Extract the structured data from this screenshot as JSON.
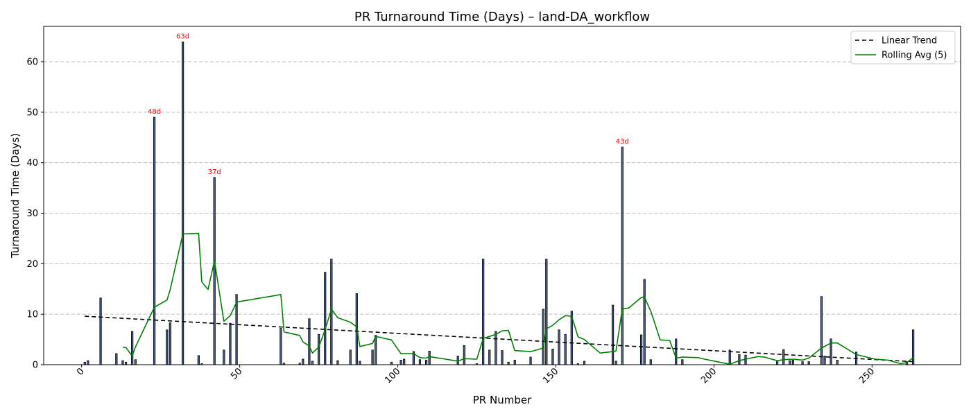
{
  "chart_data": {
    "type": "bar",
    "title": "PR Turnaround Time (Days) – land-DA_workflow",
    "xlabel": "PR Number",
    "ylabel": "Turnaround Time (Days)",
    "xlim": [
      -12,
      278
    ],
    "ylim": [
      0,
      67
    ],
    "xticks": [
      0,
      50,
      100,
      150,
      200,
      250
    ],
    "yticks": [
      0,
      10,
      20,
      30,
      40,
      50,
      60
    ],
    "grid": "y-dashed",
    "legend_position": "top-right",
    "colors": {
      "bar_fill": "#4c6391",
      "bar_edge": "#000000",
      "trend": "#000000",
      "rolling": "#008000",
      "annotation": "#ff0000",
      "grid": "#bbbbbb"
    },
    "bars": {
      "x": [
        1,
        2,
        6,
        11,
        13,
        14,
        16,
        17,
        23,
        27,
        28,
        32,
        37,
        38,
        42,
        45,
        47,
        49,
        63,
        64,
        69,
        70,
        72,
        73,
        75,
        77,
        79,
        81,
        85,
        87,
        88,
        92,
        93,
        98,
        101,
        102,
        105,
        107,
        109,
        110,
        119,
        121,
        125,
        127,
        129,
        131,
        133,
        135,
        137,
        142,
        146,
        147,
        149,
        151,
        153,
        155,
        157,
        159,
        168,
        169,
        171,
        177,
        178,
        180,
        188,
        190,
        205,
        208,
        210,
        220,
        222,
        224,
        225,
        228,
        230,
        234,
        235,
        237,
        239,
        245,
        261,
        263
      ],
      "values": [
        0.5,
        0.8,
        13.2,
        2.2,
        0.8,
        0.5,
        6.6,
        1.0,
        49.0,
        6.9,
        8.3,
        63.9,
        1.8,
        0.2,
        37.1,
        2.9,
        8.2,
        13.9,
        7.2,
        0.3,
        0.3,
        1.1,
        9.1,
        0.7,
        6.0,
        18.3,
        20.9,
        0.8,
        2.9,
        14.1,
        0.7,
        2.9,
        5.8,
        0.5,
        0.9,
        1.1,
        2.6,
        1.0,
        0.9,
        2.7,
        1.7,
        3.8,
        0.2,
        20.9,
        2.9,
        6.6,
        2.8,
        0.5,
        0.9,
        1.5,
        11.0,
        20.9,
        3.1,
        6.9,
        6.0,
        10.6,
        0.2,
        0.7,
        11.8,
        0.7,
        43.1,
        5.9,
        16.9,
        1.0,
        5.1,
        1.0,
        2.9,
        2.0,
        1.9,
        0.6,
        3.0,
        0.8,
        0.9,
        0.6,
        0.6,
        13.5,
        1.7,
        5.1,
        0.9,
        2.5,
        0.6,
        6.9
      ]
    },
    "annotations": [
      {
        "x": 23,
        "y": 49.0,
        "text": "48d"
      },
      {
        "x": 32,
        "y": 63.9,
        "text": "63d"
      },
      {
        "x": 42,
        "y": 37.1,
        "text": "37d"
      },
      {
        "x": 171,
        "y": 43.1,
        "text": "43d"
      }
    ],
    "series": [
      {
        "name": "Linear Trend",
        "style": "dashed",
        "x": [
          1,
          263
        ],
        "y": [
          9.6,
          0.6
        ]
      },
      {
        "name": "Rolling Avg (5)",
        "style": "solid",
        "x": [
          13,
          14,
          16,
          17,
          23,
          27,
          28,
          32,
          37,
          38,
          40,
          42,
          45,
          47,
          49,
          63,
          64,
          69,
          70,
          72,
          73,
          75,
          77,
          79,
          81,
          85,
          87,
          88,
          92,
          93,
          98,
          101,
          105,
          107,
          109,
          110,
          119,
          121,
          125,
          127,
          129,
          131,
          133,
          135,
          137,
          142,
          146,
          147,
          149,
          151,
          153,
          155,
          157,
          159,
          164,
          168,
          169,
          171,
          173,
          177,
          178,
          180,
          183,
          186,
          188,
          190,
          195,
          197,
          205,
          208,
          210,
          214,
          216,
          220,
          222,
          225,
          228,
          230,
          234,
          237,
          239,
          245,
          251,
          255,
          259,
          261,
          263
        ],
        "y": [
          3.5,
          3.4,
          1.7,
          3.5,
          11.4,
          12.8,
          14.8,
          25.9,
          26.0,
          16.4,
          14.9,
          20.6,
          8.6,
          9.7,
          12.4,
          13.9,
          6.5,
          5.8,
          4.5,
          3.7,
          2.3,
          3.5,
          6.9,
          11.0,
          9.3,
          8.4,
          7.5,
          3.6,
          4.2,
          5.6,
          4.9,
          2.2,
          2.2,
          1.4,
          1.3,
          1.6,
          0.7,
          1.2,
          1.1,
          5.2,
          5.6,
          6.0,
          6.7,
          6.8,
          2.8,
          2.6,
          3.3,
          7.1,
          7.8,
          8.9,
          9.7,
          9.6,
          5.5,
          5.0,
          2.3,
          2.6,
          2.7,
          11.1,
          11.2,
          13.3,
          13.4,
          10.6,
          4.9,
          4.8,
          1.3,
          1.5,
          1.4,
          1.1,
          0.1,
          0.8,
          1.1,
          1.6,
          1.5,
          0.8,
          1.0,
          1.1,
          0.9,
          1.3,
          3.3,
          4.3,
          4.3,
          2.0,
          1.1,
          0.9,
          0.2,
          0.4,
          1.4
        ]
      }
    ]
  }
}
